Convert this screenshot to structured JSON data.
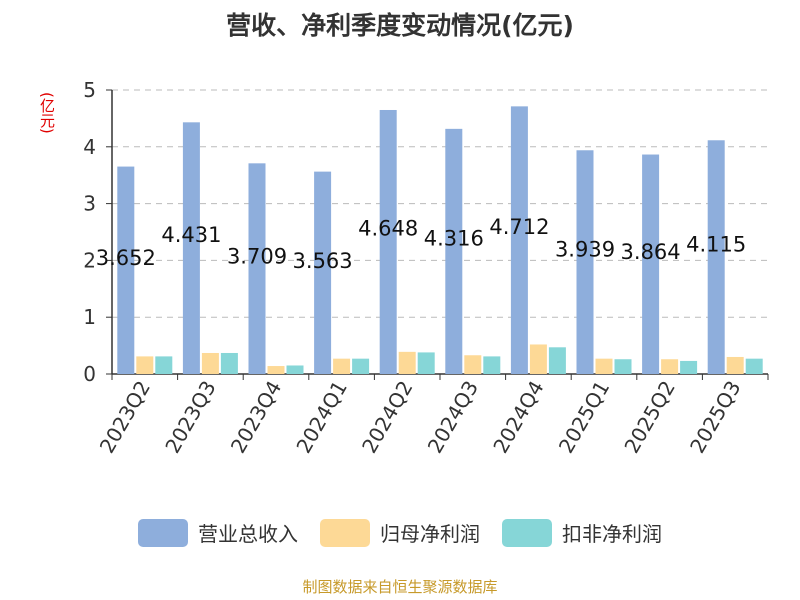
{
  "chart_data": {
    "type": "bar",
    "title": "营收、净利季度变动情况(亿元)",
    "ylabel": "(亿元)",
    "ylim": [
      0,
      5
    ],
    "yticks": [
      0,
      1,
      2,
      3,
      4,
      5
    ],
    "grid": true,
    "legend_position": "bottom",
    "categories": [
      "2023Q2",
      "2023Q3",
      "2023Q4",
      "2024Q1",
      "2024Q2",
      "2024Q3",
      "2024Q4",
      "2025Q1",
      "2025Q2",
      "2025Q3"
    ],
    "series": [
      {
        "name": "营业总收入",
        "color": "#8eaedc",
        "values": [
          3.652,
          4.431,
          3.709,
          3.563,
          4.648,
          4.316,
          4.712,
          3.939,
          3.864,
          4.115
        ],
        "show_labels": true
      },
      {
        "name": "归母净利润",
        "color": "#fdd996",
        "values": [
          0.31,
          0.37,
          0.14,
          0.27,
          0.39,
          0.33,
          0.52,
          0.27,
          0.26,
          0.3
        ],
        "show_labels": false
      },
      {
        "name": "扣非净利润",
        "color": "#86d6d7",
        "values": [
          0.31,
          0.37,
          0.15,
          0.27,
          0.38,
          0.31,
          0.47,
          0.26,
          0.23,
          0.27
        ],
        "show_labels": false
      }
    ],
    "source": "制图数据来自恒生聚源数据库"
  }
}
